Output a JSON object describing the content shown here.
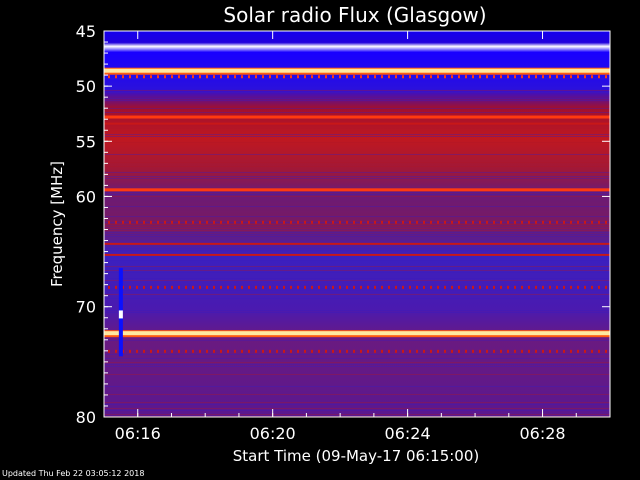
{
  "chart_data": {
    "type": "heatmap",
    "title": "Solar radio Flux (Glasgow)",
    "xlabel": "Start Time (09-May-17 06:15:00)",
    "ylabel": "Frequency [MHz]",
    "x_axis": {
      "unit": "time",
      "range": [
        "06:15:00",
        "06:30:00"
      ],
      "ticks": [
        "06:16",
        "06:20",
        "06:24",
        "06:28"
      ]
    },
    "y_axis": {
      "unit": "MHz",
      "range": [
        45,
        80
      ],
      "ticks": [
        45,
        50,
        55,
        60,
        70,
        80
      ]
    },
    "colormap": [
      "#1a00ff",
      "#3300cc",
      "#5a1a9a",
      "#8a1060",
      "#c01010",
      "#ff3010",
      "#ff8a10",
      "#ffe060",
      "#ffffff"
    ],
    "background_level": "deep blue below 50 MHz, red/purple noise 53-62 MHz, purple-blue above 62 MHz",
    "emission_bands": [
      {
        "freq_mhz": 48.6,
        "level": "saturated",
        "note": "white/yellow interference line"
      },
      {
        "freq_mhz": 49.1,
        "level": "high",
        "note": "dotted periodic line"
      },
      {
        "freq_mhz": 52.8,
        "level": "high"
      },
      {
        "freq_mhz": 53.4,
        "level": "medium"
      },
      {
        "freq_mhz": 59.4,
        "level": "high"
      },
      {
        "freq_mhz": 62.3,
        "level": "medium",
        "note": "dotted"
      },
      {
        "freq_mhz": 64.3,
        "level": "medium"
      },
      {
        "freq_mhz": 65.3,
        "level": "medium"
      },
      {
        "freq_mhz": 68.2,
        "level": "medium",
        "note": "dotted"
      },
      {
        "freq_mhz": 72.4,
        "level": "saturated"
      },
      {
        "freq_mhz": 74.0,
        "level": "medium",
        "note": "dotted"
      }
    ],
    "spikes": [
      {
        "time": "06:15:30",
        "freq_range_mhz": [
          66.5,
          74.5
        ],
        "note": "short vertical burst with white core near 70.7 MHz"
      }
    ]
  },
  "footer": {
    "updated": "Updated Thu Feb 22 03:05:12 2018"
  }
}
